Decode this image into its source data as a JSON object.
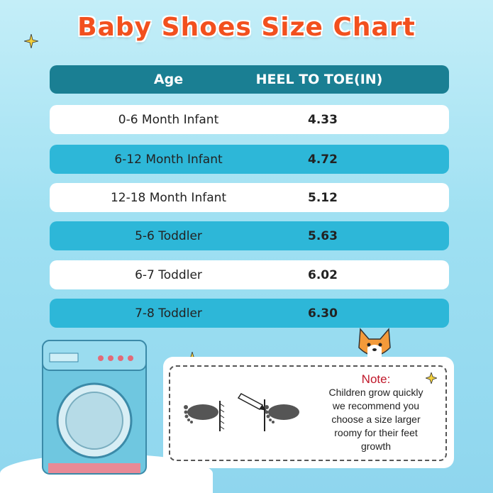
{
  "title": "Baby Shoes Size Chart",
  "table": {
    "headers": [
      "Age",
      "HEEL TO TOE(IN)"
    ],
    "rows": [
      {
        "age": "0-6 Month Infant",
        "heel_to_toe": "4.33"
      },
      {
        "age": "6-12 Month Infant",
        "heel_to_toe": "4.72"
      },
      {
        "age": "12-18 Month Infant",
        "heel_to_toe": "5.12"
      },
      {
        "age": "5-6 Toddler",
        "heel_to_toe": "5.63"
      },
      {
        "age": "6-7 Toddler",
        "heel_to_toe": "6.02"
      },
      {
        "age": "7-8 Toddler",
        "heel_to_toe": "6.30"
      }
    ]
  },
  "note": {
    "heading": "Note:",
    "lines": [
      "Children grow quickly",
      "we recommend you",
      "choose a size larger",
      "roomy for their feet",
      "growth"
    ]
  },
  "colors": {
    "title": "#f2501e",
    "header": "#1a7f93",
    "row_alt": "#2db7d8",
    "note_heading": "#c0182a"
  },
  "icons": [
    "sparkle-icon",
    "washing-machine-illustration",
    "corgi-illustration",
    "footprint-icon",
    "pencil-icon"
  ]
}
